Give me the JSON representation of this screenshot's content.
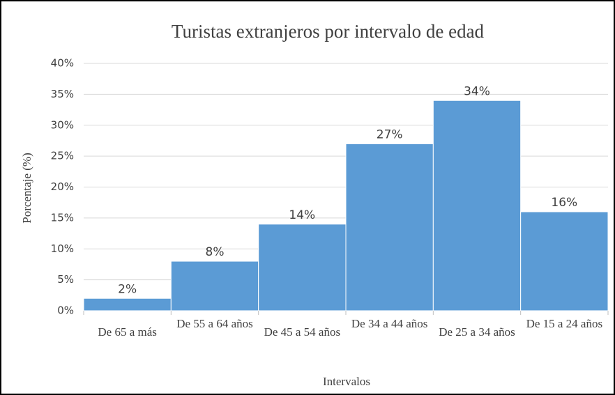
{
  "chart_data": {
    "type": "bar",
    "title": "Turistas extranjeros por intervalo de edad",
    "x_label": "Intervalos",
    "y_label": "Porcentaje (%)",
    "categories": [
      "De 65 a más",
      "De 55 a 64 años",
      "De 45 a 54 años",
      "De 34 a 44 años",
      "De 25 a 34 años",
      "De 15 a 24 años"
    ],
    "values": [
      2,
      8,
      14,
      27,
      34,
      16
    ],
    "value_labels": [
      "2%",
      "8%",
      "14%",
      "27%",
      "34%",
      "16%"
    ],
    "color": "#5b9bd5",
    "ylim": [
      0,
      40
    ],
    "yticks": [
      {
        "value": 0,
        "label": "0%"
      },
      {
        "value": 5,
        "label": "5%"
      },
      {
        "value": 10,
        "label": "10%"
      },
      {
        "value": 15,
        "label": "15%"
      },
      {
        "value": 20,
        "label": "20%"
      },
      {
        "value": 25,
        "label": "25%"
      },
      {
        "value": 30,
        "label": "30%"
      },
      {
        "value": 35,
        "label": "35%"
      },
      {
        "value": 40,
        "label": "40%"
      }
    ],
    "grid": true
  }
}
